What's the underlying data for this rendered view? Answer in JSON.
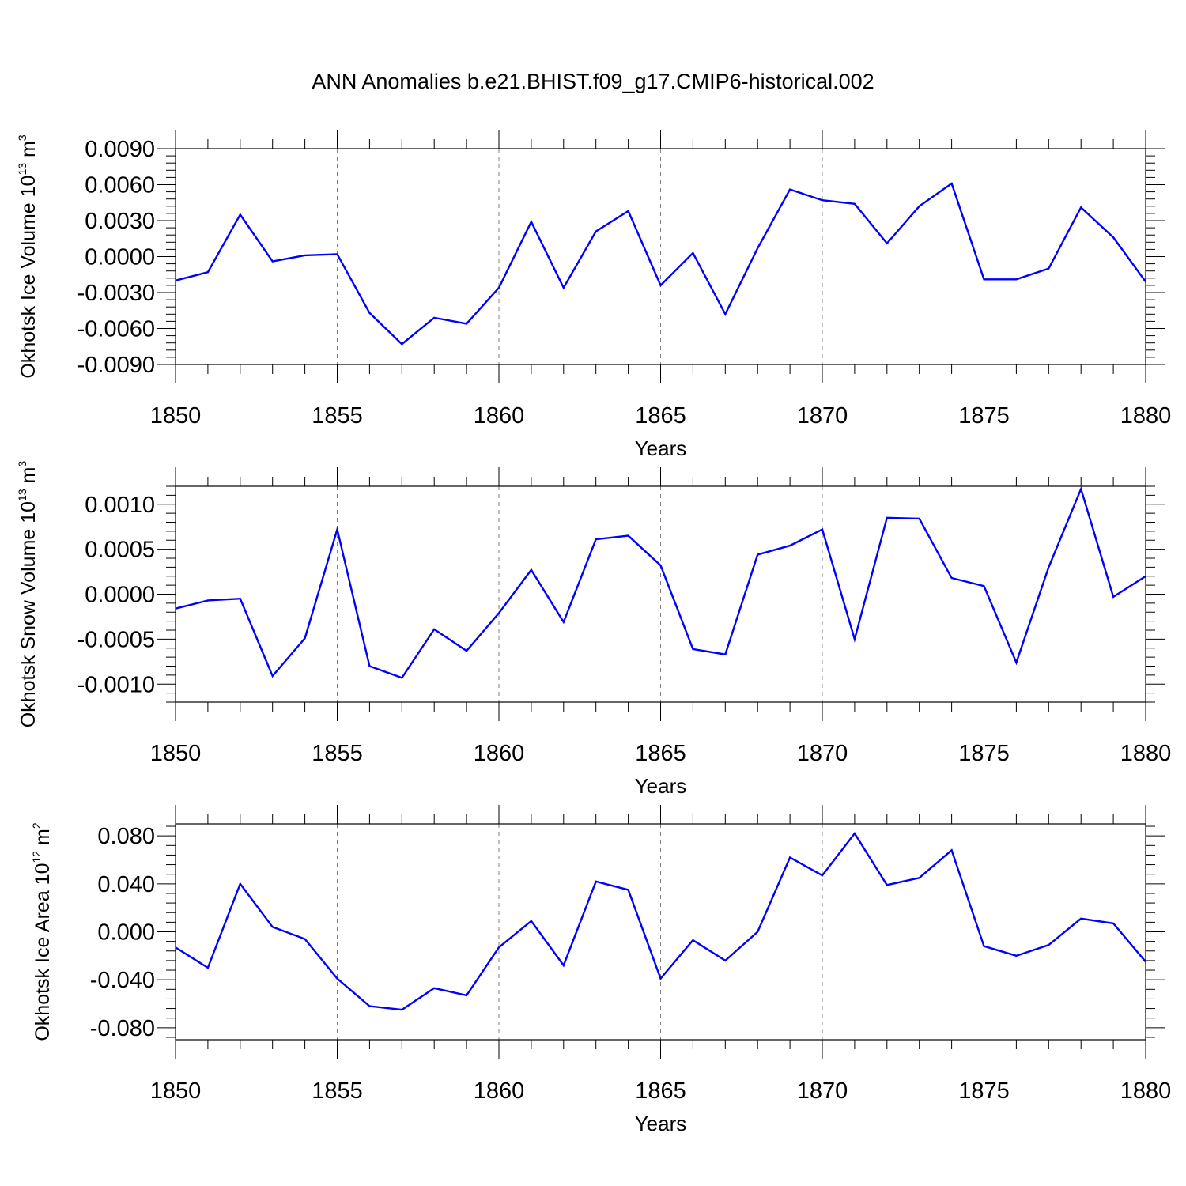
{
  "figure_title": "ANN Anomalies b.e21.BHIST.f09_g17.CMIP6-historical.002",
  "chart_data": [
    {
      "type": "line",
      "title": "ANN Anomalies b.e21.BHIST.f09_g17.CMIP6-historical.002",
      "xlabel": "Years",
      "ylabel": "Okhotsk Ice Volume 10",
      "ylabel_exp": "13",
      "ylabel_unit": " m",
      "ylabel_unit_exp": "3",
      "xlim": [
        1850,
        1880
      ],
      "ylim": [
        -0.009,
        0.009
      ],
      "yticks": [
        -0.009,
        -0.006,
        -0.003,
        0.0,
        0.003,
        0.006,
        0.009
      ],
      "ytick_labels": [
        "-0.0090",
        "-0.0060",
        "-0.0030",
        "0.0000",
        "0.0030",
        "0.0060",
        "0.0090"
      ],
      "xticks": [
        1850,
        1855,
        1860,
        1865,
        1870,
        1875,
        1880
      ],
      "xtick_labels": [
        "1850",
        "1855",
        "1860",
        "1865",
        "1870",
        "1875",
        "1880"
      ],
      "grid": "vertical dashed at major x ticks",
      "series": [
        {
          "name": "Okhotsk Ice Volume",
          "color": "#0000ff",
          "x": [
            1850,
            1851,
            1852,
            1853,
            1854,
            1855,
            1856,
            1857,
            1858,
            1859,
            1860,
            1861,
            1862,
            1863,
            1864,
            1865,
            1866,
            1867,
            1868,
            1869,
            1870,
            1871,
            1872,
            1873,
            1874,
            1875,
            1876,
            1877,
            1878,
            1879,
            1880
          ],
          "values": [
            -0.002,
            -0.0013,
            0.0035,
            -0.0004,
            0.0001,
            0.0002,
            -0.0047,
            -0.0073,
            -0.0051,
            -0.0056,
            -0.0026,
            0.0029,
            -0.0026,
            0.0021,
            0.0038,
            -0.0024,
            0.0003,
            -0.0048,
            0.0007,
            0.0056,
            0.0047,
            0.0044,
            0.0011,
            0.0042,
            0.0061,
            -0.0019,
            -0.0019,
            -0.001,
            0.0041,
            0.0016,
            -0.0021
          ]
        }
      ]
    },
    {
      "type": "line",
      "xlabel": "Years",
      "ylabel": "Okhotsk Snow Volume 10",
      "ylabel_exp": "13",
      "ylabel_unit": " m",
      "ylabel_unit_exp": "3",
      "xlim": [
        1850,
        1880
      ],
      "ylim": [
        -0.0012,
        0.0012
      ],
      "yticks": [
        -0.001,
        -0.0005,
        0.0,
        0.0005,
        0.001
      ],
      "ytick_labels": [
        "-0.0010",
        "-0.0005",
        "0.0000",
        "0.0005",
        "0.0010"
      ],
      "xticks": [
        1850,
        1855,
        1860,
        1865,
        1870,
        1875,
        1880
      ],
      "xtick_labels": [
        "1850",
        "1855",
        "1860",
        "1865",
        "1870",
        "1875",
        "1880"
      ],
      "grid": "vertical dashed at major x ticks",
      "series": [
        {
          "name": "Okhotsk Snow Volume",
          "color": "#0000ff",
          "x": [
            1850,
            1851,
            1852,
            1853,
            1854,
            1855,
            1856,
            1857,
            1858,
            1859,
            1860,
            1861,
            1862,
            1863,
            1864,
            1865,
            1866,
            1867,
            1868,
            1869,
            1870,
            1871,
            1872,
            1873,
            1874,
            1875,
            1876,
            1877,
            1878,
            1879,
            1880
          ],
          "values": [
            -0.00016,
            -7e-05,
            -5e-05,
            -0.00091,
            -0.00049,
            0.00072,
            -0.0008,
            -0.00093,
            -0.00039,
            -0.00063,
            -0.00021,
            0.00027,
            -0.00031,
            0.00061,
            0.00065,
            0.00032,
            -0.00061,
            -0.00067,
            0.00044,
            0.00054,
            0.00072,
            -0.0005,
            0.00085,
            0.00084,
            0.00018,
            9e-05,
            -0.00076,
            0.0003,
            0.00117,
            -3e-05,
            0.0002
          ]
        }
      ]
    },
    {
      "type": "line",
      "xlabel": "Years",
      "ylabel": "Okhotsk Ice Area 10",
      "ylabel_exp": "12",
      "ylabel_unit": " m",
      "ylabel_unit_exp": "2",
      "xlim": [
        1850,
        1880
      ],
      "ylim": [
        -0.09,
        0.09
      ],
      "yticks": [
        -0.08,
        -0.04,
        0.0,
        0.04,
        0.08
      ],
      "ytick_labels": [
        "-0.080",
        "-0.040",
        "0.000",
        "0.040",
        "0.080"
      ],
      "xticks": [
        1850,
        1855,
        1860,
        1865,
        1870,
        1875,
        1880
      ],
      "xtick_labels": [
        "1850",
        "1855",
        "1860",
        "1865",
        "1870",
        "1875",
        "1880"
      ],
      "grid": "vertical dashed at major x ticks",
      "series": [
        {
          "name": "Okhotsk Ice Area",
          "color": "#0000ff",
          "x": [
            1850,
            1851,
            1852,
            1853,
            1854,
            1855,
            1856,
            1857,
            1858,
            1859,
            1860,
            1861,
            1862,
            1863,
            1864,
            1865,
            1866,
            1867,
            1868,
            1869,
            1870,
            1871,
            1872,
            1873,
            1874,
            1875,
            1876,
            1877,
            1878,
            1879,
            1880
          ],
          "values": [
            -0.013,
            -0.03,
            0.04,
            0.004,
            -0.006,
            -0.039,
            -0.062,
            -0.065,
            -0.047,
            -0.053,
            -0.013,
            0.009,
            -0.028,
            0.042,
            0.035,
            -0.039,
            -0.007,
            -0.024,
            0.0,
            0.062,
            0.047,
            0.082,
            0.039,
            0.045,
            0.068,
            -0.012,
            -0.02,
            -0.011,
            0.011,
            0.007,
            -0.025
          ]
        }
      ]
    }
  ]
}
